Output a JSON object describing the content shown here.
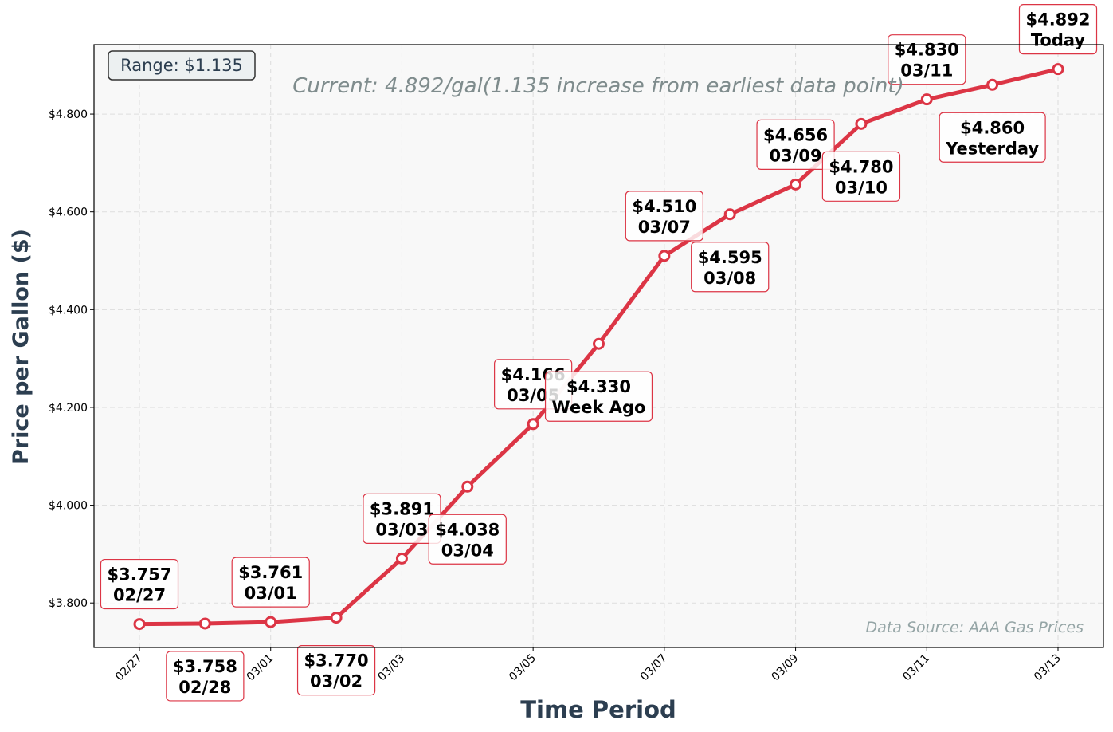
{
  "chart_data": {
    "type": "line",
    "xlabel": "Time Period",
    "ylabel": "Price per Gallon ($)",
    "annotation_current": "Current: 4.892/gal(1.135 increase from earliest data point)",
    "annotation_range": "Range: $1.135",
    "annotation_source": "Data Source: AAA Gas Prices",
    "x_tick_labels": [
      "02/27",
      "03/01",
      "03/03",
      "03/05",
      "03/07",
      "03/09",
      "03/11",
      "03/13"
    ],
    "y_ticks": [
      3.8,
      4.0,
      4.2,
      4.4,
      4.6,
      4.8
    ],
    "y_tick_labels": [
      "$3.800",
      "$4.000",
      "$4.200",
      "$4.400",
      "$4.600",
      "$4.800"
    ],
    "ylim": [
      3.709,
      4.942
    ],
    "grid": true,
    "line_color": "#dc3545",
    "points": [
      {
        "date": "02/27",
        "value": 3.757,
        "price_label": "$3.757",
        "tag": "02/27"
      },
      {
        "date": "02/28",
        "value": 3.758,
        "price_label": "$3.758",
        "tag": "02/28"
      },
      {
        "date": "03/01",
        "value": 3.761,
        "price_label": "$3.761",
        "tag": "03/01"
      },
      {
        "date": "03/02",
        "value": 3.77,
        "price_label": "$3.770",
        "tag": "03/02"
      },
      {
        "date": "03/03",
        "value": 3.891,
        "price_label": "$3.891",
        "tag": "03/03"
      },
      {
        "date": "03/04",
        "value": 4.038,
        "price_label": "$4.038",
        "tag": "03/04"
      },
      {
        "date": "03/05",
        "value": 4.166,
        "price_label": "$4.166",
        "tag": "03/05"
      },
      {
        "date": "03/06",
        "value": 4.33,
        "price_label": "$4.330",
        "tag": "Week Ago"
      },
      {
        "date": "03/07",
        "value": 4.51,
        "price_label": "$4.510",
        "tag": "03/07"
      },
      {
        "date": "03/08",
        "value": 4.595,
        "price_label": "$4.595",
        "tag": "03/08"
      },
      {
        "date": "03/09",
        "value": 4.656,
        "price_label": "$4.656",
        "tag": "03/09"
      },
      {
        "date": "03/10",
        "value": 4.78,
        "price_label": "$4.780",
        "tag": "03/10"
      },
      {
        "date": "03/11",
        "value": 4.83,
        "price_label": "$4.830",
        "tag": "03/11"
      },
      {
        "date": "03/12",
        "value": 4.86,
        "price_label": "$4.860",
        "tag": "Yesterday"
      },
      {
        "date": "03/13",
        "value": 4.892,
        "price_label": "$4.892",
        "tag": "Today"
      }
    ]
  }
}
